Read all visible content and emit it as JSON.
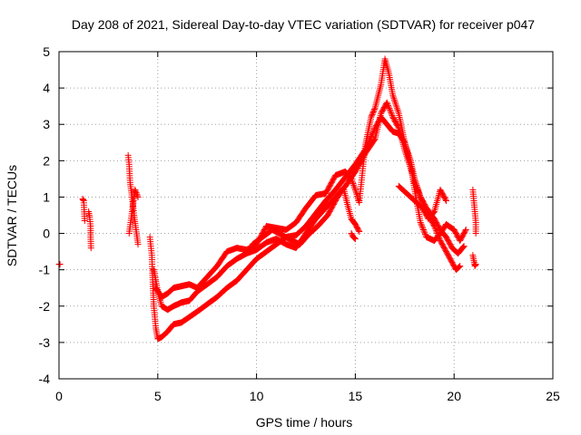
{
  "chart_data": {
    "type": "scatter",
    "title": "Day 208 of 2021, Sidereal Day-to-day VTEC variation (SDTVAR) for receiver p047",
    "xlabel": "GPS time / hours",
    "ylabel": "SDTVAR / TECUs",
    "xlim": [
      0,
      25
    ],
    "ylim": [
      -4,
      5
    ],
    "xticks": [
      "0",
      "5",
      "10",
      "15",
      "20",
      "25"
    ],
    "yticks": [
      "-4",
      "-3",
      "-2",
      "-1",
      "0",
      "1",
      "2",
      "3",
      "4",
      "5"
    ],
    "grid": true,
    "marker": "plus",
    "series": [
      {
        "name": "SDTVAR",
        "color": "#ff0000",
        "segments": [
          [
            [
              0.0,
              -0.85
            ],
            [
              0.05,
              -0.85
            ]
          ],
          [
            [
              1.2,
              0.95
            ],
            [
              1.25,
              0.9
            ],
            [
              1.3,
              0.35
            ]
          ],
          [
            [
              1.5,
              0.6
            ],
            [
              1.55,
              0.45
            ],
            [
              1.6,
              0.2
            ],
            [
              1.6,
              -0.1
            ],
            [
              1.62,
              -0.4
            ]
          ],
          [
            [
              3.5,
              2.15
            ],
            [
              3.55,
              1.9
            ],
            [
              3.6,
              1.4
            ],
            [
              3.7,
              1.0
            ],
            [
              3.8,
              0.5
            ],
            [
              3.9,
              0.1
            ],
            [
              4.0,
              -0.3
            ]
          ],
          [
            [
              3.55,
              0.0
            ],
            [
              3.7,
              0.6
            ],
            [
              3.85,
              1.2
            ],
            [
              4.0,
              1.0
            ]
          ],
          [
            [
              4.6,
              -0.1
            ],
            [
              4.7,
              -0.6
            ],
            [
              4.75,
              -1.4
            ],
            [
              4.8,
              -2.0
            ],
            [
              4.9,
              -2.6
            ],
            [
              5.0,
              -2.9
            ],
            [
              5.2,
              -2.85
            ],
            [
              5.5,
              -2.7
            ],
            [
              5.8,
              -2.5
            ],
            [
              6.2,
              -2.45
            ],
            [
              6.6,
              -2.3
            ],
            [
              7.0,
              -2.15
            ],
            [
              7.5,
              -1.95
            ],
            [
              8.0,
              -1.75
            ],
            [
              8.5,
              -1.5
            ],
            [
              9.0,
              -1.3
            ],
            [
              9.5,
              -1.0
            ],
            [
              10.0,
              -0.7
            ],
            [
              10.5,
              -0.5
            ],
            [
              11.0,
              -0.3
            ],
            [
              11.5,
              -0.1
            ],
            [
              12.0,
              -0.05
            ],
            [
              12.5,
              0.2
            ],
            [
              13.0,
              0.55
            ],
            [
              13.5,
              0.9
            ],
            [
              14.0,
              1.2
            ],
            [
              14.5,
              1.55
            ],
            [
              15.0,
              1.9
            ],
            [
              15.5,
              2.3
            ],
            [
              16.0,
              2.9
            ],
            [
              16.3,
              3.2
            ],
            [
              16.6,
              3.0
            ],
            [
              16.9,
              2.8
            ],
            [
              17.2,
              2.75
            ],
            [
              17.5,
              2.5
            ],
            [
              17.8,
              2.0
            ],
            [
              18.0,
              1.5
            ],
            [
              18.3,
              1.0
            ],
            [
              18.6,
              0.6
            ],
            [
              19.0,
              0.2
            ],
            [
              19.3,
              -0.2
            ],
            [
              19.6,
              -0.5
            ],
            [
              19.9,
              -0.8
            ],
            [
              20.1,
              -1.0
            ],
            [
              20.3,
              -0.9
            ]
          ],
          [
            [
              4.8,
              -1.0
            ],
            [
              5.0,
              -1.6
            ],
            [
              5.2,
              -2.0
            ],
            [
              5.5,
              -2.1
            ],
            [
              5.8,
              -2.0
            ],
            [
              6.2,
              -1.9
            ],
            [
              6.6,
              -1.85
            ],
            [
              7.0,
              -1.6
            ],
            [
              7.5,
              -1.4
            ],
            [
              8.0,
              -1.2
            ],
            [
              8.5,
              -0.9
            ],
            [
              9.0,
              -0.7
            ],
            [
              9.5,
              -0.55
            ],
            [
              10.0,
              -0.45
            ],
            [
              10.5,
              -0.25
            ],
            [
              11.0,
              -0.15
            ],
            [
              11.5,
              -0.3
            ],
            [
              12.0,
              -0.4
            ],
            [
              12.5,
              0.0
            ],
            [
              13.0,
              0.4
            ],
            [
              13.5,
              0.7
            ],
            [
              14.0,
              1.0
            ],
            [
              14.5,
              1.3
            ],
            [
              15.0,
              1.7
            ],
            [
              15.5,
              2.2
            ],
            [
              16.0,
              2.6
            ],
            [
              16.3,
              3.3
            ],
            [
              16.6,
              3.6
            ],
            [
              16.9,
              3.2
            ],
            [
              17.2,
              2.9
            ],
            [
              17.5,
              2.3
            ],
            [
              17.8,
              1.8
            ],
            [
              18.0,
              1.4
            ],
            [
              18.3,
              1.0
            ],
            [
              18.6,
              0.7
            ],
            [
              19.0,
              0.4
            ],
            [
              19.3,
              0.1
            ],
            [
              19.6,
              -0.1
            ],
            [
              19.9,
              -0.4
            ],
            [
              20.2,
              -0.55
            ],
            [
              20.5,
              -0.35
            ]
          ],
          [
            [
              4.9,
              -1.5
            ],
            [
              5.2,
              -1.75
            ],
            [
              5.5,
              -1.65
            ],
            [
              5.8,
              -1.5
            ],
            [
              6.2,
              -1.45
            ],
            [
              6.6,
              -1.4
            ],
            [
              7.0,
              -1.5
            ],
            [
              7.5,
              -1.2
            ],
            [
              8.0,
              -0.9
            ],
            [
              8.5,
              -0.5
            ],
            [
              9.0,
              -0.4
            ],
            [
              9.5,
              -0.45
            ],
            [
              10.0,
              -0.3
            ],
            [
              10.5,
              0.2
            ],
            [
              11.0,
              0.15
            ],
            [
              11.5,
              0.1
            ],
            [
              12.0,
              0.3
            ],
            [
              12.5,
              0.7
            ],
            [
              13.0,
              1.05
            ],
            [
              13.5,
              1.1
            ],
            [
              14.0,
              1.6
            ],
            [
              14.5,
              1.7
            ],
            [
              14.8,
              1.5
            ],
            [
              15.0,
              1.2
            ],
            [
              15.2,
              0.85
            ],
            [
              15.5,
              2.4
            ],
            [
              15.8,
              3.2
            ],
            [
              16.0,
              3.45
            ],
            [
              16.3,
              4.1
            ],
            [
              16.5,
              4.8
            ],
            [
              16.7,
              4.4
            ],
            [
              16.9,
              3.8
            ],
            [
              17.2,
              3.3
            ],
            [
              17.5,
              2.5
            ],
            [
              17.8,
              1.9
            ],
            [
              18.0,
              1.2
            ],
            [
              18.3,
              0.3
            ],
            [
              18.6,
              -0.1
            ],
            [
              19.0,
              -0.2
            ],
            [
              19.3,
              0.0
            ],
            [
              19.6,
              0.25
            ],
            [
              20.0,
              0.1
            ],
            [
              20.3,
              -0.2
            ],
            [
              20.6,
              0.1
            ]
          ],
          [
            [
              9.8,
              -0.3
            ],
            [
              10.3,
              -0.1
            ],
            [
              10.8,
              0.1
            ],
            [
              11.3,
              -0.05
            ],
            [
              11.8,
              -0.2
            ],
            [
              12.2,
              -0.3
            ],
            [
              12.6,
              -0.05
            ],
            [
              13.1,
              0.2
            ],
            [
              13.6,
              0.5
            ],
            [
              14.1,
              1.0
            ],
            [
              14.4,
              1.25
            ],
            [
              14.6,
              0.8
            ],
            [
              14.8,
              0.4
            ],
            [
              15.0,
              0.25
            ],
            [
              15.2,
              0.05
            ]
          ],
          [
            [
              14.8,
              0.0
            ],
            [
              14.9,
              -0.1
            ],
            [
              15.0,
              -0.15
            ]
          ],
          [
            [
              17.2,
              1.3
            ],
            [
              17.6,
              1.1
            ],
            [
              18.0,
              0.9
            ],
            [
              18.4,
              0.7
            ],
            [
              18.7,
              0.4
            ],
            [
              19.0,
              0.6
            ],
            [
              19.3,
              1.2
            ],
            [
              19.6,
              0.9
            ]
          ],
          [
            [
              20.95,
              1.2
            ],
            [
              21.0,
              0.9
            ],
            [
              21.05,
              0.6
            ],
            [
              21.1,
              0.3
            ],
            [
              21.1,
              0.0
            ]
          ],
          [
            [
              20.95,
              -0.6
            ],
            [
              21.0,
              -0.75
            ],
            [
              21.05,
              -0.9
            ],
            [
              21.1,
              -0.85
            ]
          ]
        ]
      }
    ]
  }
}
